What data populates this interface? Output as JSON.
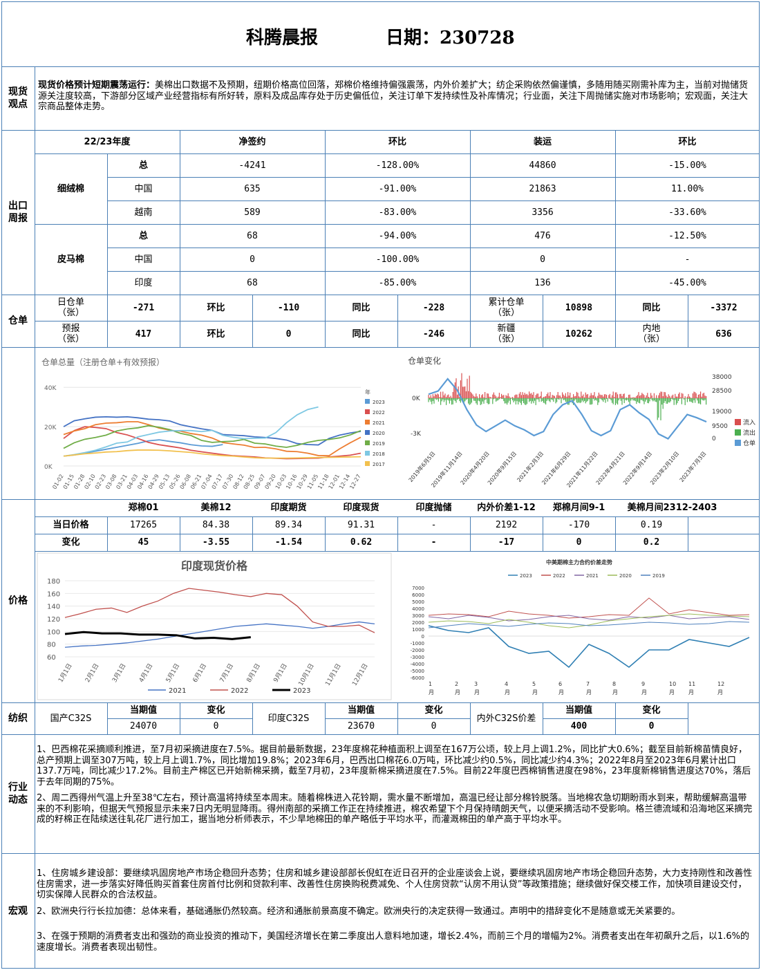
{
  "header": {
    "title": "科腾晨报",
    "date_label": "日期：230728"
  },
  "spot_view": {
    "label": "现货\n观点",
    "headline": "现货价格预计短期震荡运行：",
    "text": "美棉出口数据不及预期，纽期价格高位回落，郑棉价格维持偏强震荡，内外价差扩大；纺企采购依然偏谨慎，多随用随买刚需补库为主，当前对抛储货源关注度较高，下游部分区域产业经营指标有所好转，原料及成品库存处于历史偏低位，关注订单下发持续性及补库情况；行业面，关注下周抛储实施对市场影响；宏观面，关注大宗商品整体走势。"
  },
  "export": {
    "label": "出口\n周报",
    "headers": [
      "22/23年度",
      "净签约",
      "环比",
      "装运",
      "环比"
    ],
    "groups": [
      {
        "name": "细绒棉",
        "rows": [
          {
            "sub": "总",
            "net": "-4241",
            "net_mom": "-128.00%",
            "ship": "44860",
            "ship_mom": "-15.00%"
          },
          {
            "sub": "中国",
            "net": "635",
            "net_mom": "-91.00%",
            "ship": "21863",
            "ship_mom": "11.00%"
          },
          {
            "sub": "越南",
            "net": "589",
            "net_mom": "-83.00%",
            "ship": "3356",
            "ship_mom": "-33.60%"
          }
        ]
      },
      {
        "name": "皮马棉",
        "rows": [
          {
            "sub": "总",
            "net": "68",
            "net_mom": "-94.00%",
            "ship": "476",
            "ship_mom": "-12.50%"
          },
          {
            "sub": "中国",
            "net": "0",
            "net_mom": "-100.00%",
            "ship": "0",
            "ship_mom": "-"
          },
          {
            "sub": "印度",
            "net": "68",
            "net_mom": "-85.00%",
            "ship": "136",
            "ship_mom": "-45.00%"
          }
        ]
      }
    ]
  },
  "warehouse": {
    "label": "仓单",
    "row1": [
      "日仓单\n（张）",
      "-271",
      "环比",
      "-110",
      "同比",
      "-228",
      "累计仓单\n（张）",
      "10898",
      "同比",
      "-3372"
    ],
    "row2": [
      "预报\n（张）",
      "417",
      "环比",
      "0",
      "同比",
      "-246",
      "新疆\n（张）",
      "10262",
      "内地\n（张）",
      "636"
    ]
  },
  "chart_total": {
    "title": "仓单总量（注册仓单+有效预报）",
    "y_ticks": [
      "40K",
      "20K",
      "0K"
    ],
    "legend_title": "年",
    "x_ticks": [
      "01-02",
      "01-15",
      "01-28",
      "02-10",
      "02-23",
      "03-08",
      "03-21",
      "04-03",
      "04-16",
      "04-29",
      "05-13",
      "05-26",
      "06-08",
      "06-21",
      "07-04",
      "07-17",
      "07-30",
      "08-12",
      "08-25",
      "09-07",
      "09-20",
      "10-03",
      "10-16",
      "10-29",
      "11-05",
      "11-18",
      "12-01",
      "12-14",
      "12-27"
    ]
  },
  "chart_change": {
    "title": "仓单变化",
    "y_left": [
      "0K",
      "-3K"
    ],
    "y_right": [
      "38000",
      "28500",
      "19000",
      "9500",
      "0"
    ],
    "x_ticks": [
      "2019年6月5日",
      "2019年11月14日",
      "2020年4月20日",
      "2020年9月15日",
      "2021年2月3日",
      "2021年6月29日",
      "2021年11月22日",
      "2022年4月21日",
      "2022年9月14日",
      "2023年2月10日",
      "2023年7月3日"
    ]
  },
  "price_table": {
    "label": "价格",
    "headers": [
      "郑棉01",
      "美棉12",
      "印度期货",
      "印度现货",
      "印度抛储",
      "内外价差1-12",
      "郑棉月间9-1",
      "美棉月间2312-2403"
    ],
    "row1_label": "当日价格",
    "row1": [
      "17265",
      "84.38",
      "89.34",
      "91.31",
      "-",
      "2192",
      "-170",
      "0.19"
    ],
    "row2_label": "变化",
    "row2": [
      "45",
      "-3.55",
      "-1.54",
      "0.62",
      "-",
      "-17",
      "0",
      "0.2"
    ]
  },
  "chart_india": {
    "title": "印度现货价格",
    "y_ticks": [
      "180",
      "160",
      "140",
      "120",
      "100",
      "80",
      "60"
    ],
    "x_ticks": [
      "1月1日",
      "2月1日",
      "3月1日",
      "4月1日",
      "5月1日",
      "6月1日",
      "7月1日",
      "8月1日",
      "9月1日",
      "10月1日",
      "11月1日",
      "12月1日"
    ]
  },
  "chart_spread": {
    "title": "中美期棉主力合约价差走势",
    "y_ticks": [
      "7000",
      "6000",
      "5000",
      "4000",
      "3000",
      "2000",
      "1000",
      "0",
      "-1000",
      "-2000",
      "-3000",
      "-4000",
      "-5000",
      "-6000"
    ],
    "x_ticks": [
      "1",
      "2",
      "3",
      "4",
      "5",
      "6",
      "7",
      "8",
      "9",
      "10",
      "11",
      "12"
    ],
    "x_unit": "月"
  },
  "chart_data": [
    {
      "type": "line",
      "title": "仓单总量（注册仓单+有效预报）",
      "legend_title": "年",
      "ylim": [
        0,
        45000
      ],
      "series": [
        {
          "name": "2023",
          "color": "#5b9bd5",
          "values": [
            5000,
            5600,
            6500,
            7500,
            8500,
            9500,
            10500,
            11500,
            12800,
            13300,
            12500,
            11800,
            10800,
            10200,
            10000,
            10900
          ]
        },
        {
          "name": "2022",
          "color": "#d94f4f",
          "values": [
            14000,
            18000,
            20000,
            19600,
            19000,
            17000,
            15800,
            14000,
            12000,
            10800,
            10000,
            9200,
            8000,
            7200,
            6500,
            5800,
            5200,
            4900,
            4600,
            4100,
            3900,
            3700,
            3800,
            3900,
            4000,
            4600,
            5000,
            5500,
            6500
          ]
        },
        {
          "name": "2021",
          "color": "#ed7d31",
          "values": [
            16000,
            17800,
            19000,
            21000,
            21800,
            22000,
            22500,
            22500,
            21000,
            19300,
            18200,
            17700,
            16500,
            15700,
            14200,
            11900,
            11200,
            10600,
            9400,
            9500,
            8700,
            7500,
            7300,
            6500,
            5300,
            5200,
            8700,
            11800,
            14600
          ]
        },
        {
          "name": "2020",
          "color": "#4472c4",
          "values": [
            20000,
            23000,
            24000,
            24800,
            25000,
            24800,
            25000,
            24500,
            23800,
            23500,
            22900,
            21000,
            19900,
            18900,
            18100,
            16000,
            15700,
            15400,
            14800,
            14500,
            14000,
            13200,
            11400,
            10900,
            10700,
            14000,
            15700,
            16800,
            17600
          ]
        },
        {
          "name": "2019",
          "color": "#70ad47",
          "values": [
            9000,
            11800,
            13600,
            14500,
            15700,
            17800,
            18800,
            19400,
            20500,
            19700,
            18500,
            16600,
            15500,
            13000,
            12000,
            12400,
            12600,
            13500,
            11600,
            11200,
            10100,
            9500,
            10500,
            12000,
            13000,
            13500,
            14300,
            15800,
            18000
          ]
        },
        {
          "name": "2018",
          "color": "#7ec8e3",
          "values": [
            5000,
            5800,
            6800,
            8000,
            9700,
            11600,
            12200,
            14800,
            16000,
            17200,
            17800,
            18000,
            18000,
            17500,
            18100,
            15600,
            14600,
            13900,
            14100,
            14200,
            17000,
            22000,
            26000,
            28700,
            30000
          ]
        },
        {
          "name": "2017",
          "color": "#f2c14e",
          "values": [
            5000,
            5600,
            6200,
            6600,
            7100,
            7300,
            7800,
            8100,
            8100,
            8000,
            7700,
            7300,
            6900,
            6200,
            5700,
            5300,
            5000,
            4600,
            4200,
            4000,
            4000,
            4000,
            4100,
            4200,
            4300,
            4400,
            4500,
            4600,
            4700
          ]
        }
      ]
    },
    {
      "type": "bar",
      "title": "仓单变化",
      "series": [
        {
          "name": "流入",
          "color": "#d94f4f"
        },
        {
          "name": "流出",
          "color": "#4caf50"
        },
        {
          "name": "仓单",
          "color": "#5b9bd5",
          "values": [
            28500,
            30500,
            38000,
            31000,
            19000,
            9500,
            5500,
            9000,
            12500,
            9000,
            6500,
            3000,
            5500,
            16000,
            22000,
            24500,
            16000,
            6000,
            3000,
            6000,
            19000,
            22000,
            17000,
            13000,
            4000,
            1000,
            8500,
            16000,
            14000,
            11500
          ]
        }
      ]
    },
    {
      "type": "line",
      "title": "印度现货价格",
      "ylim": [
        60,
        180
      ],
      "series": [
        {
          "name": "2021",
          "color": "#4472c4",
          "values": [
            75,
            77,
            78,
            80,
            82,
            85,
            88,
            92,
            96,
            100,
            104,
            108,
            110,
            112,
            110,
            108,
            105,
            108,
            112,
            115,
            112
          ]
        },
        {
          "name": "2022",
          "color": "#c0504d",
          "values": [
            122,
            128,
            135,
            137,
            130,
            140,
            148,
            160,
            168,
            165,
            162,
            158,
            155,
            160,
            158,
            140,
            115,
            108,
            108,
            110,
            98
          ]
        },
        {
          "name": "2023",
          "color": "#000000",
          "values": [
            96,
            99,
            97,
            97,
            95,
            95,
            94,
            89,
            90,
            88,
            91
          ]
        }
      ]
    },
    {
      "type": "line",
      "title": "中美期棉主力合约价差走势",
      "ylim": [
        -6000,
        7000
      ],
      "series": [
        {
          "name": "2023",
          "color": "#2f7fb3",
          "values": [
            1500,
            800,
            500,
            1200,
            -1500,
            -2500,
            -2200,
            -4500,
            -1200,
            -2500,
            -4500,
            -2000,
            -2000,
            -500,
            -1000,
            -1500,
            -200
          ]
        },
        {
          "name": "2022",
          "color": "#c0504d",
          "values": [
            3000,
            3200,
            3100,
            2800,
            3600,
            3200,
            3000,
            2600,
            2800,
            3100,
            3000,
            5500,
            3200,
            3800,
            3400,
            3000,
            3100
          ]
        },
        {
          "name": "2021",
          "color": "#8064a2",
          "values": [
            2800,
            2500,
            3000,
            2700,
            2200,
            2400,
            2800,
            3000,
            2500,
            2300,
            2800,
            2600,
            3000,
            2500,
            2700,
            2800,
            2400
          ]
        },
        {
          "name": "2020",
          "color": "#9bbb59",
          "values": [
            2000,
            2200,
            2100,
            1800,
            2400,
            2000,
            1500,
            1200,
            1600,
            2200,
            2500,
            2800,
            3000,
            3200,
            3000,
            2900,
            2800
          ]
        },
        {
          "name": "2019",
          "color": "#4f81bd",
          "values": [
            1200,
            1500,
            1800,
            1600,
            1400,
            1700,
            1900,
            1800,
            1500,
            1600,
            1800,
            2000,
            1900,
            1700,
            1800,
            2100,
            2000
          ]
        }
      ]
    }
  ],
  "textile": {
    "label": "纺织",
    "cells": [
      "国产C32S",
      "当期值",
      "变化",
      "印度C32S",
      "当期值",
      "变化",
      "内外C32S价差",
      "当期值",
      "变化"
    ],
    "values": [
      "24070",
      "0",
      "23670",
      "0",
      "400",
      "0"
    ]
  },
  "industry": {
    "label": "行业\n动态",
    "p1": "1、巴西棉花采摘顺利推进，至7月初采摘进度在7.5%。据目前最新数据，23年度棉花种植面积上调至在167万公顷，较上月上调1.2%，同比扩大0.6%；截至目前新棉苗情良好，总产预期上调至307万吨，较上月上调1.7%，同比增加19.8%；2023年6月，巴西出口棉花6.0万吨，环比减少约0.5%，同比减少约4.3%；2022年8月至2023年6月累计出口137.7万吨，同比减少17.2%。目前主产棉区已开始新棉采摘，截至7月初，23年度新棉采摘进度在7.5%。目前22年度巴西棉销售进度在98%，23年度新棉销售进度达70%，落后于去年同期的75%。",
    "p2": "2、周二西得州气温上升至38℃左右，预计高温将持续至本周末。随着棉株进入花铃期，需水量不断增加，高温已经让部分棉铃脱落。当地棉农急切期盼雨水到来，帮助缓解高温带来的不利影响，但据天气预报显示未来7日内无明显降雨。得州南部的采摘工作正在持续推进，棉农希望下个月保持晴朗天气，以便采摘活动不受影响。格兰德流域和沿海地区采摘完成的籽棉正在陆续送往轧花厂进行加工，据当地分析师表示，不少旱地棉田的单产略低于平均水平，而灌溉棉田的单产高于平均水平。"
  },
  "macro": {
    "label": "宏观",
    "p1": "1、住房城乡建设部：要继续巩固房地产市场企稳回升态势；住房和城乡建设部部长倪虹在近日召开的企业座谈会上说，要继续巩固房地产市场企稳回升态势，大力支持刚性和改善性住房需求，进一步落实好降低购买首套住房首付比例和贷款利率、改善性住房换购税费减免、个人住房贷款“认房不用认贷”等政策措施；继续做好保交楼工作，加快项目建设交付，切实保障人民群众的合法权益。",
    "p2": "2、欧洲央行行长拉加德：总体来看，基础通胀仍然较高。经济和通胀前景高度不确定。欧洲央行的决定获得一致通过。声明中的措辞变化不是随意或无关紧要的。",
    "p3": "3、在强于预期的消费者支出和强劲的商业投资的推动下，美国经济增长在第二季度出人意料地加速，增长2.4%，而前三个月的增幅为2%。消费者支出在年初飙升之后，以1.6%的速度增长。消费者表现出韧性。"
  }
}
